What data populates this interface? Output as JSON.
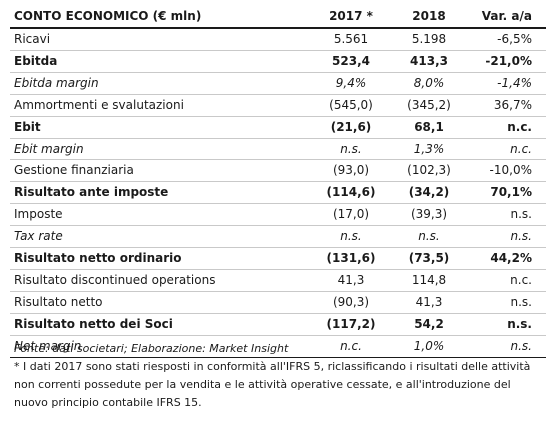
{
  "table": {
    "headers": {
      "label": "CONTO ECONOMICO (€ mln)",
      "col1": "2017 *",
      "col2": "2018",
      "col3": "Var. a/a"
    },
    "rows": [
      {
        "label": "Ricavi",
        "v1": "5.561",
        "v2": "5.198",
        "v3": "-6,5%",
        "style": "normal"
      },
      {
        "label": "Ebitda",
        "v1": "523,4",
        "v2": "413,3",
        "v3": "-21,0%",
        "style": "bold"
      },
      {
        "label": "Ebitda margin",
        "v1": "9,4%",
        "v2": "8,0%",
        "v3": "-1,4%",
        "style": "italic"
      },
      {
        "label": "Ammortmenti e svalutazioni",
        "v1": "(545,0)",
        "v2": "(345,2)",
        "v3": "36,7%",
        "style": "normal"
      },
      {
        "label": "Ebit",
        "v1": "(21,6)",
        "v2": "68,1",
        "v3": "n.c.",
        "style": "bold"
      },
      {
        "label": "Ebit margin",
        "v1": "n.s.",
        "v2": "1,3%",
        "v3": "n.c.",
        "style": "italic"
      },
      {
        "label": "Gestione finanziaria",
        "v1": "(93,0)",
        "v2": "(102,3)",
        "v3": "-10,0%",
        "style": "normal"
      },
      {
        "label": "Risultato ante imposte",
        "v1": "(114,6)",
        "v2": "(34,2)",
        "v3": "70,1%",
        "style": "bold"
      },
      {
        "label": "Imposte",
        "v1": "(17,0)",
        "v2": "(39,3)",
        "v3": "n.s.",
        "style": "normal"
      },
      {
        "label": "Tax rate",
        "v1": "n.s.",
        "v2": "n.s.",
        "v3": "n.s.",
        "style": "italic"
      },
      {
        "label": "Risultato netto ordinario",
        "v1": "(131,6)",
        "v2": "(73,5)",
        "v3": "44,2%",
        "style": "bold"
      },
      {
        "label": "Risultato discontinued operations",
        "v1": "41,3",
        "v2": "114,8",
        "v3": "n.c.",
        "style": "normal"
      },
      {
        "label": "Risultato netto",
        "v1": "(90,3)",
        "v2": "41,3",
        "v3": "n.s.",
        "style": "normal"
      },
      {
        "label": "Risultato netto dei Soci",
        "v1": "(117,2)",
        "v2": "54,2",
        "v3": "n.s.",
        "style": "bold"
      },
      {
        "label": "Net margin",
        "v1": "n.c.",
        "v2": "1,0%",
        "v3": "n.s.",
        "style": "italic"
      }
    ]
  },
  "notes": {
    "source": "Fonte: dati societari; Elaborazione: Market Insight",
    "footnote": "* I dati 2017 sono stati riesposti in conformità all'IFRS 5, riclassificando i risultati delle attività non correnti possedute per la vendita e le attività operative cessate, e all'introduzione del nuovo principio contabile IFRS 15."
  }
}
